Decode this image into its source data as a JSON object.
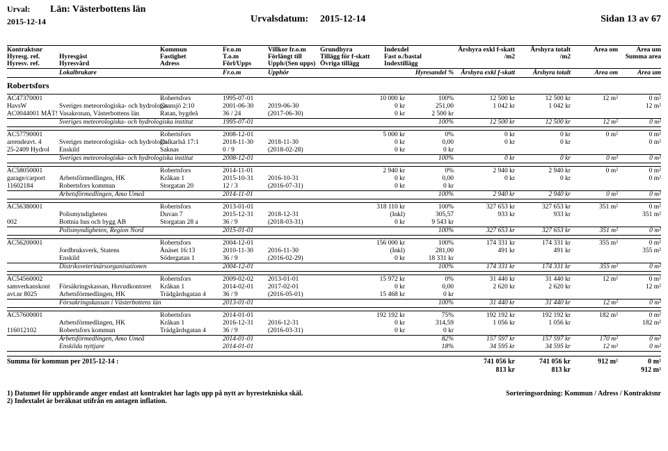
{
  "header": {
    "urval_label": "Urval:",
    "lan": "Län: Västerbottens län",
    "datum": "2015-12-14",
    "urvalsdatum_label": "Urvalsdatum:",
    "urvalsdatum": "2015-12-14",
    "sidan": "Sidan 13 av 67"
  },
  "col_headers": {
    "r1": {
      "c0": "Kontraktsnr",
      "c1": "",
      "c2": "Kommun",
      "c3": "Fr.o.m",
      "c4": "Villkor fr.o.m",
      "c5": "Grundhyra",
      "c6": "Indexdel",
      "c8": "Årshyra exkl f-skatt",
      "c9": "Årshyra totalt",
      "c10": "Area om",
      "c11": "Area um"
    },
    "r2": {
      "c0": "Hyresg. ref.",
      "c1": "Hyresgäst",
      "c2": "Fastighet",
      "c3": "T.o.m",
      "c4": "Förlängt till",
      "c5": "Tillägg för f-skatt",
      "c6": "Fast o./bastal",
      "c8": "/m2",
      "c9": "/m2",
      "c10": "",
      "c11": "Summa area"
    },
    "r3": {
      "c0": "Hyresv. ref.",
      "c1": "Hyresvärd",
      "c2": "Adress",
      "c3": "Förl/Upps",
      "c4": "Upph/(Sen upps)",
      "c5": "Övriga tillägg",
      "c6": "Indextillägg",
      "c8": "",
      "c9": "",
      "c10": "",
      "c11": ""
    },
    "r4": {
      "c1": "Lokalbrukare",
      "c3": "Fr.o.m",
      "c4": "Upphör",
      "c7": "Hyresandel %",
      "c8": "Årshyra exkl f-skatt",
      "c9": "Årshyra totalt",
      "c10": "Area om",
      "c11": "Area um"
    }
  },
  "section_title": "Robertsfors",
  "blocks": [
    {
      "rows": [
        {
          "c0": "AC47370001",
          "c2": "Robertsfors",
          "c3": "1995-07-01",
          "c6r": "10 000 kr",
          "c7r": "100%",
          "c8r": "12 500 kr",
          "c9r": "12 500 kr",
          "c10r": "12 m²",
          "c11r": "0 m²"
        },
        {
          "c0": "HavsW",
          "c1": "Sveriges meteorologiska- och hydrologis",
          "c2": "Gransjö 2:10",
          "c3": "2001-06-30",
          "c4": "2019-06-30",
          "c6r": "0 kr",
          "c7r": "251,00",
          "c8r": "1 042 kr",
          "c9r": "1 042 kr",
          "c11r": "12 m²"
        },
        {
          "c0": "AC0044001 MÅT!",
          "c1": "Vasakronan, Västerbottens län",
          "c2": "Ratan, bygdeå",
          "c3": "36 / 24",
          "c4": "(2017-06-30)",
          "c6r": "0 kr",
          "c7r": "2 500 kr"
        }
      ],
      "summaries": [
        {
          "c1": "Sveriges meteorologiska- och hydrologiska institut",
          "c3": "1995-07-01",
          "c7r": "100%",
          "c8r": "12 500 kr",
          "c9r": "12 500 kr",
          "c10r": "12 m²",
          "c11r": "0 m²"
        }
      ]
    },
    {
      "rows": [
        {
          "c0": "AC57790001",
          "c2": "Robertsfors",
          "c3": "2008-12-01",
          "c6r": "5 000 kr",
          "c7r": "0%",
          "c8r": "0 kr",
          "c9r": "0 kr",
          "c10r": "0 m²",
          "c11r": "0 m²"
        },
        {
          "c0": "arrendeavt. 4",
          "c1": "Sveriges meteorologiska- och hydrologis",
          "c2": "Dalkarlså 17:1",
          "c3": "2018-11-30",
          "c4": "2018-11-30",
          "c6r": "0 kr",
          "c7r": "0,00",
          "c8r": "0 kr",
          "c9r": "0 kr",
          "c11r": "0 m²"
        },
        {
          "c0": "25-2409 Hydrol",
          "c1": "Enskild",
          "c2": "Saknas",
          "c3": "0 / 9",
          "c4": "(2018-02-28)",
          "c6r": "0 kr",
          "c7r": "0 kr"
        }
      ],
      "summaries": [
        {
          "c1": "Sveriges meteorologiska- och hydrologiska institut",
          "c3": "2008-12-01",
          "c7r": "100%",
          "c8r": "0 kr",
          "c9r": "0 kr",
          "c10r": "0 m²",
          "c11r": "0 m²"
        }
      ]
    },
    {
      "rows": [
        {
          "c0": "AC58050001",
          "c2": "Robertsfors",
          "c3": "2014-11-01",
          "c6r": "2 940 kr",
          "c7r": "0%",
          "c8r": "2 940 kr",
          "c9r": "2 940 kr",
          "c10r": "0 m²",
          "c11r": "0 m²"
        },
        {
          "c0": "garage/carport",
          "c1": "Arbetsförmedlingen, HK",
          "c2": "Kråkan 1",
          "c3": "2015-10-31",
          "c4": "2016-10-31",
          "c6r": "0 kr",
          "c7r": "0,00",
          "c8r": "0 kr",
          "c9r": "0 kr",
          "c11r": "0 m²"
        },
        {
          "c0": "11602184",
          "c1": "Robertsfors kommun",
          "c2": "Storgatan 20",
          "c3": "12 / 3",
          "c4": "(2016-07-31)",
          "c6r": "0 kr",
          "c7r": "0 kr"
        }
      ],
      "summaries": [
        {
          "c1": "Arbetsförmedlingen, Amo Umeå",
          "c3": "2014-11-01",
          "c7r": "100%",
          "c8r": "2 940 kr",
          "c9r": "2 940 kr",
          "c10r": "0 m²",
          "c11r": "0 m²"
        }
      ]
    },
    {
      "rows": [
        {
          "c0": "AC56380001",
          "c2": "Robertsfors",
          "c3": "2013-01-01",
          "c6r": "318 110 kr",
          "c7r": "100%",
          "c8r": "327 653 kr",
          "c9r": "327 653 kr",
          "c10r": "351 m²",
          "c11r": "0 m²"
        },
        {
          "c1": "Polismyndigheten",
          "c2": "Duvan 7",
          "c3": "2015-12-31",
          "c4": "2018-12-31",
          "c6r": "(Inkl)",
          "c7r": "305,57",
          "c8r": "933 kr",
          "c9r": "933 kr",
          "c11r": "351 m²"
        },
        {
          "c0": "002",
          "c1": "Bottnia hus och bygg AB",
          "c2": "Storgatan 28 a",
          "c3": "36 / 9",
          "c4": "(2018-03-31)",
          "c6r": "0 kr",
          "c7r": "9 543 kr"
        }
      ],
      "summaries": [
        {
          "c1": "Polismyndigheten, Region Nord",
          "c3": "2015-01-01",
          "c7r": "100%",
          "c8r": "327 653 kr",
          "c9r": "327 653 kr",
          "c10r": "351 m²",
          "c11r": "0 m²"
        }
      ]
    },
    {
      "rows": [
        {
          "c0": "AC56200001",
          "c2": "Robertsfors",
          "c3": "2004-12-01",
          "c6r": "156 000 kr",
          "c7r": "100%",
          "c8r": "174 331 kr",
          "c9r": "174 331 kr",
          "c10r": "355 m²",
          "c11r": "0 m²"
        },
        {
          "c1": "Jordbruksverk, Statens",
          "c2": "Ånäset 16:13",
          "c3": "2010-11-30",
          "c4": "2016-11-30",
          "c6r": "(Inkl)",
          "c7r": "281,00",
          "c8r": "491 kr",
          "c9r": "491 kr",
          "c11r": "355 m²"
        },
        {
          "c1": "Enskild",
          "c2": "Södergatan 1",
          "c3": "36 / 9",
          "c4": "(2016-02-29)",
          "c6r": "0 kr",
          "c7r": "18 331 kr"
        }
      ],
      "summaries": [
        {
          "c1": "Distriksveterinärsorganisationen",
          "c3": "2004-12-01",
          "c7r": "100%",
          "c8r": "174 331 kr",
          "c9r": "174 331 kr",
          "c10r": "355 m²",
          "c11r": "0 m²"
        }
      ]
    },
    {
      "rows": [
        {
          "c0": "AC54560002",
          "c2": "Robertsfors",
          "c3": "2009-02-02",
          "c4": "2013-01-01",
          "c6r": "15 972 kr",
          "c7r": "0%",
          "c8r": "31 440 kr",
          "c9r": "31 440 kr",
          "c10r": "12 m²",
          "c11r": "0 m²"
        },
        {
          "c0": "samverkanskont",
          "c1": "Försäkringskassan, Huvudkontoret",
          "c2": "Kråkan 1",
          "c3": "2014-02-01",
          "c4": "2017-02-01",
          "c6r": "0 kr",
          "c7r": "0,00",
          "c8r": "2 620 kr",
          "c9r": "2 620 kr",
          "c11r": "12 m²"
        },
        {
          "c0": "avt.nr 8025",
          "c1": "Arbetsförmedlingen, HK",
          "c2": "Trädgårdsgatan 4",
          "c3": "36 / 9",
          "c4": "(2016-05-01)",
          "c6r": "15 468 kr",
          "c7r": "0 kr"
        }
      ],
      "summaries": [
        {
          "c1": "Försakringskassan i Västerbottens län",
          "c3": "2013-01-01",
          "c7r": "100%",
          "c8r": "31 440 kr",
          "c9r": "31 440 kr",
          "c10r": "12 m²",
          "c11r": "0 m²"
        }
      ]
    },
    {
      "rows": [
        {
          "c0": "AC57600001",
          "c2": "Robertsfors",
          "c3": "2014-01-01",
          "c6r": "192 192 kr",
          "c7r": "75%",
          "c8r": "192 192 kr",
          "c9r": "192 192 kr",
          "c10r": "182 m²",
          "c11r": "0 m²"
        },
        {
          "c1": "Arbetsförmedlingen, HK",
          "c2": "Kråkan 1",
          "c3": "2016-12-31",
          "c4": "2016-12-31",
          "c6r": "0 kr",
          "c7r": "314,59",
          "c8r": "1 056 kr",
          "c9r": "1 056 kr",
          "c11r": "182 m²"
        },
        {
          "c0": "116012102",
          "c1": "Robertsfors kommun",
          "c2": "Trädgårdsgatan 4",
          "c3": "36 / 9",
          "c4": "(2016-03-31)",
          "c6r": "0 kr",
          "c7r": "0 kr"
        }
      ],
      "summaries": [
        {
          "c1": "Arbetsförmedlingen, Amo Umeå",
          "c3": "2014-01-01",
          "c7r": "82%",
          "c8r": "157 597 kr",
          "c9r": "157 597 kr",
          "c10r": "170 m²",
          "c11r": "0 m²"
        },
        {
          "c1": "Enskilda nyttjare",
          "c3": "2014-01-01",
          "c7r": "18%",
          "c8r": "34 595 kr",
          "c9r": "34 595 kr",
          "c10r": "12 m²",
          "c11r": "0 m²"
        }
      ]
    }
  ],
  "subtotal": {
    "label": "Summa för kommun per 2015-12-14 :",
    "r1": {
      "c8r": "741 056 kr",
      "c9r": "741 056 kr",
      "c10r": "912 m²",
      "c11r": "0 m²"
    },
    "r2": {
      "c8r": "813 kr",
      "c9r": "813 kr",
      "c11r": "912 m²"
    }
  },
  "footer": {
    "left1": "1) Datumet för upphörande anger endast att kontraktet har lagts upp på nytt av hyrestekniska skäl.",
    "left2": "2) Indextalet är beräknat utifrån en antagen inflation.",
    "right": "Sorteringsordning: Kommun / Adress / Kontraktsnr"
  }
}
